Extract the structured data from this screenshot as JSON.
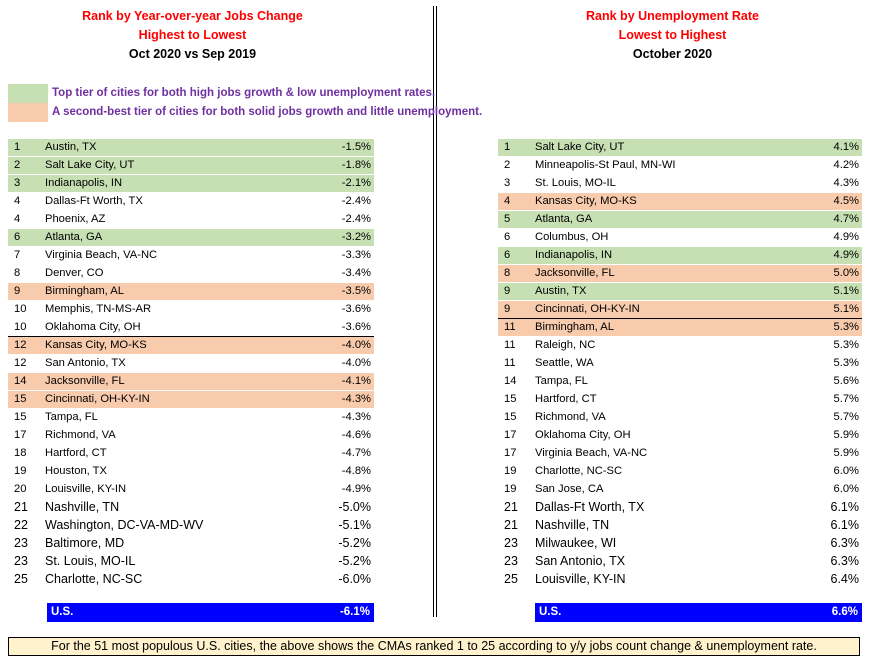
{
  "colors": {
    "tier1": "#c6e0b4",
    "tier2": "#f8cbad",
    "us_bar": "#0000ff",
    "header_red": "#ff0000",
    "legend_text": "#7030a0",
    "footer_bg": "#fff2cc"
  },
  "chart_data": [
    {
      "type": "table",
      "title": "Rank by Year-over-year Jobs Change",
      "subtitle": "Highest to Lowest",
      "period": "Oct 2020 vs Sep 2019",
      "rows": [
        {
          "rank": "1",
          "city": "Austin, TX",
          "value": "-1.5%",
          "tier": 1
        },
        {
          "rank": "2",
          "city": "Salt Lake City, UT",
          "value": "-1.8%",
          "tier": 1
        },
        {
          "rank": "3",
          "city": "Indianapolis, IN",
          "value": "-2.1%",
          "tier": 1
        },
        {
          "rank": "4",
          "city": "Dallas-Ft Worth, TX",
          "value": "-2.4%",
          "tier": 0
        },
        {
          "rank": "4",
          "city": "Phoenix, AZ",
          "value": "-2.4%",
          "tier": 0
        },
        {
          "rank": "6",
          "city": "Atlanta, GA",
          "value": "-3.2%",
          "tier": 1
        },
        {
          "rank": "7",
          "city": "Virginia Beach, VA-NC",
          "value": "-3.3%",
          "tier": 0
        },
        {
          "rank": "8",
          "city": "Denver, CO",
          "value": "-3.4%",
          "tier": 0
        },
        {
          "rank": "9",
          "city": "Birmingham, AL",
          "value": "-3.5%",
          "tier": 2
        },
        {
          "rank": "10",
          "city": "Memphis, TN-MS-AR",
          "value": "-3.6%",
          "tier": 0
        },
        {
          "rank": "10",
          "city": "Oklahoma City, OH",
          "value": "-3.6%",
          "tier": 0
        },
        {
          "rank": "12",
          "city": "Kansas City, MO-KS",
          "value": "-4.0%",
          "tier": 2
        },
        {
          "rank": "12",
          "city": "San Antonio, TX",
          "value": "-4.0%",
          "tier": 0
        },
        {
          "rank": "14",
          "city": "Jacksonville, FL",
          "value": "-4.1%",
          "tier": 2
        },
        {
          "rank": "15",
          "city": "Cincinnati, OH-KY-IN",
          "value": "-4.3%",
          "tier": 2
        },
        {
          "rank": "15",
          "city": "Tampa, FL",
          "value": "-4.3%",
          "tier": 0
        },
        {
          "rank": "17",
          "city": "Richmond, VA",
          "value": "-4.6%",
          "tier": 0
        },
        {
          "rank": "18",
          "city": "Hartford, CT",
          "value": "-4.7%",
          "tier": 0
        },
        {
          "rank": "19",
          "city": "Houston, TX",
          "value": "-4.8%",
          "tier": 0
        },
        {
          "rank": "20",
          "city": "Louisville, KY-IN",
          "value": "-4.9%",
          "tier": 0
        },
        {
          "rank": "21",
          "city": "Nashville, TN",
          "value": "-5.0%",
          "tier": 0,
          "big": true
        },
        {
          "rank": "22",
          "city": "Washington, DC-VA-MD-WV",
          "value": "-5.1%",
          "tier": 0,
          "big": true
        },
        {
          "rank": "23",
          "city": "Baltimore, MD",
          "value": "-5.2%",
          "tier": 0,
          "big": true
        },
        {
          "rank": "23",
          "city": "St. Louis, MO-IL",
          "value": "-5.2%",
          "tier": 0,
          "big": true
        },
        {
          "rank": "25",
          "city": "Charlotte, NC-SC",
          "value": "-6.0%",
          "tier": 0,
          "big": true
        }
      ],
      "divider_after_index": 10,
      "us": {
        "label": "U.S.",
        "value": "-6.1%"
      }
    },
    {
      "type": "table",
      "title": "Rank by Unemployment Rate",
      "subtitle": "Lowest to Highest",
      "period": "October 2020",
      "rows": [
        {
          "rank": "1",
          "city": "Salt Lake City, UT",
          "value": "4.1%",
          "tier": 1
        },
        {
          "rank": "2",
          "city": "Minneapolis-St Paul, MN-WI",
          "value": "4.2%",
          "tier": 0
        },
        {
          "rank": "3",
          "city": "St. Louis, MO-IL",
          "value": "4.3%",
          "tier": 0
        },
        {
          "rank": "4",
          "city": "Kansas City, MO-KS",
          "value": "4.5%",
          "tier": 2
        },
        {
          "rank": "5",
          "city": "Atlanta, GA",
          "value": "4.7%",
          "tier": 1
        },
        {
          "rank": "6",
          "city": "Columbus, OH",
          "value": "4.9%",
          "tier": 0
        },
        {
          "rank": "6",
          "city": "Indianapolis, IN",
          "value": "4.9%",
          "tier": 1
        },
        {
          "rank": "8",
          "city": "Jacksonville, FL",
          "value": "5.0%",
          "tier": 2
        },
        {
          "rank": "9",
          "city": "Austin, TX",
          "value": "5.1%",
          "tier": 1
        },
        {
          "rank": "9",
          "city": "Cincinnati, OH-KY-IN",
          "value": "5.1%",
          "tier": 2
        },
        {
          "rank": "11",
          "city": "Birmingham, AL",
          "value": "5.3%",
          "tier": 2
        },
        {
          "rank": "11",
          "city": "Raleigh, NC",
          "value": "5.3%",
          "tier": 0
        },
        {
          "rank": "11",
          "city": "Seattle, WA",
          "value": "5.3%",
          "tier": 0
        },
        {
          "rank": "14",
          "city": "Tampa, FL",
          "value": "5.6%",
          "tier": 0
        },
        {
          "rank": "15",
          "city": "Hartford, CT",
          "value": "5.7%",
          "tier": 0
        },
        {
          "rank": "15",
          "city": "Richmond, VA",
          "value": "5.7%",
          "tier": 0
        },
        {
          "rank": "17",
          "city": "Oklahoma City, OH",
          "value": "5.9%",
          "tier": 0
        },
        {
          "rank": "17",
          "city": "Virginia Beach, VA-NC",
          "value": "5.9%",
          "tier": 0
        },
        {
          "rank": "19",
          "city": "Charlotte, NC-SC",
          "value": "6.0%",
          "tier": 0
        },
        {
          "rank": "19",
          "city": "San Jose, CA",
          "value": "6.0%",
          "tier": 0
        },
        {
          "rank": "21",
          "city": "Dallas-Ft Worth, TX",
          "value": "6.1%",
          "tier": 0,
          "big": true
        },
        {
          "rank": "21",
          "city": "Nashville, TN",
          "value": "6.1%",
          "tier": 0,
          "big": true
        },
        {
          "rank": "23",
          "city": "Milwaukee, WI",
          "value": "6.3%",
          "tier": 0,
          "big": true
        },
        {
          "rank": "23",
          "city": "San Antonio, TX",
          "value": "6.3%",
          "tier": 0,
          "big": true
        },
        {
          "rank": "25",
          "city": "Louisville, KY-IN",
          "value": "6.4%",
          "tier": 0,
          "big": true
        }
      ],
      "divider_after_index": 9,
      "us": {
        "label": "U.S.",
        "value": "6.6%"
      }
    }
  ],
  "legend": {
    "tier1": "Top tier of cities for both high jobs growth & low unemployment rates.",
    "tier2": "A second-best tier of cities for both solid jobs growth and little unemployment."
  },
  "footer": "For the 51 most populous U.S. cities, the above shows the CMAs ranked 1 to 25 according to y/y jobs count change & unemployment rate."
}
